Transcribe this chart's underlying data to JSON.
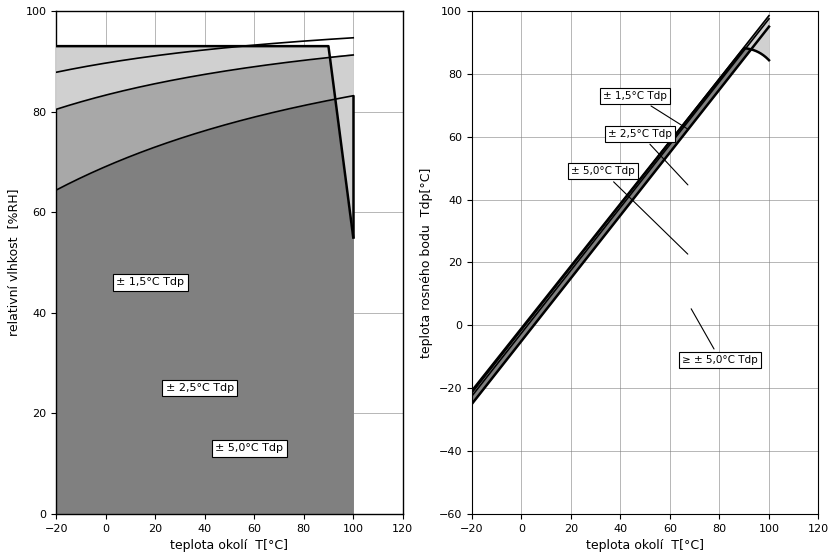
{
  "left": {
    "xlabel": "teplota okolí  T[°C]",
    "ylabel": "relativní vlhkost  [%RH]",
    "xlim": [
      -20,
      120
    ],
    "ylim": [
      0,
      100
    ],
    "xticks": [
      -20,
      0,
      20,
      40,
      60,
      80,
      100,
      120
    ],
    "yticks": [
      0,
      20,
      40,
      60,
      80,
      100
    ],
    "color_outer": "#d0d0d0",
    "color_mid": "#a8a8a8",
    "color_inner": "#808080",
    "label_15": "± 1,5°C Tdp",
    "label_25": "± 2,5°C Tdp",
    "label_50": "± 5,0°C Tdp"
  },
  "right": {
    "xlabel": "teplota okolí  T[°C]",
    "ylabel": "teplota rosného bodu  Tdp[°C]",
    "xlim": [
      -20,
      120
    ],
    "ylim": [
      -60,
      100
    ],
    "xticks": [
      -20,
      0,
      20,
      40,
      60,
      80,
      100,
      120
    ],
    "yticks": [
      -60,
      -40,
      -20,
      0,
      20,
      40,
      60,
      80,
      100
    ],
    "color_outer": "#d0d0d0",
    "color_mid": "#a8a8a8",
    "color_inner": "#808080",
    "label_15": "± 1,5°C Tdp",
    "label_25": "± 2,5°C Tdp",
    "label_50": "± 5,0°C Tdp",
    "label_ge50": "≥ ± 5,0°C Tdp"
  }
}
